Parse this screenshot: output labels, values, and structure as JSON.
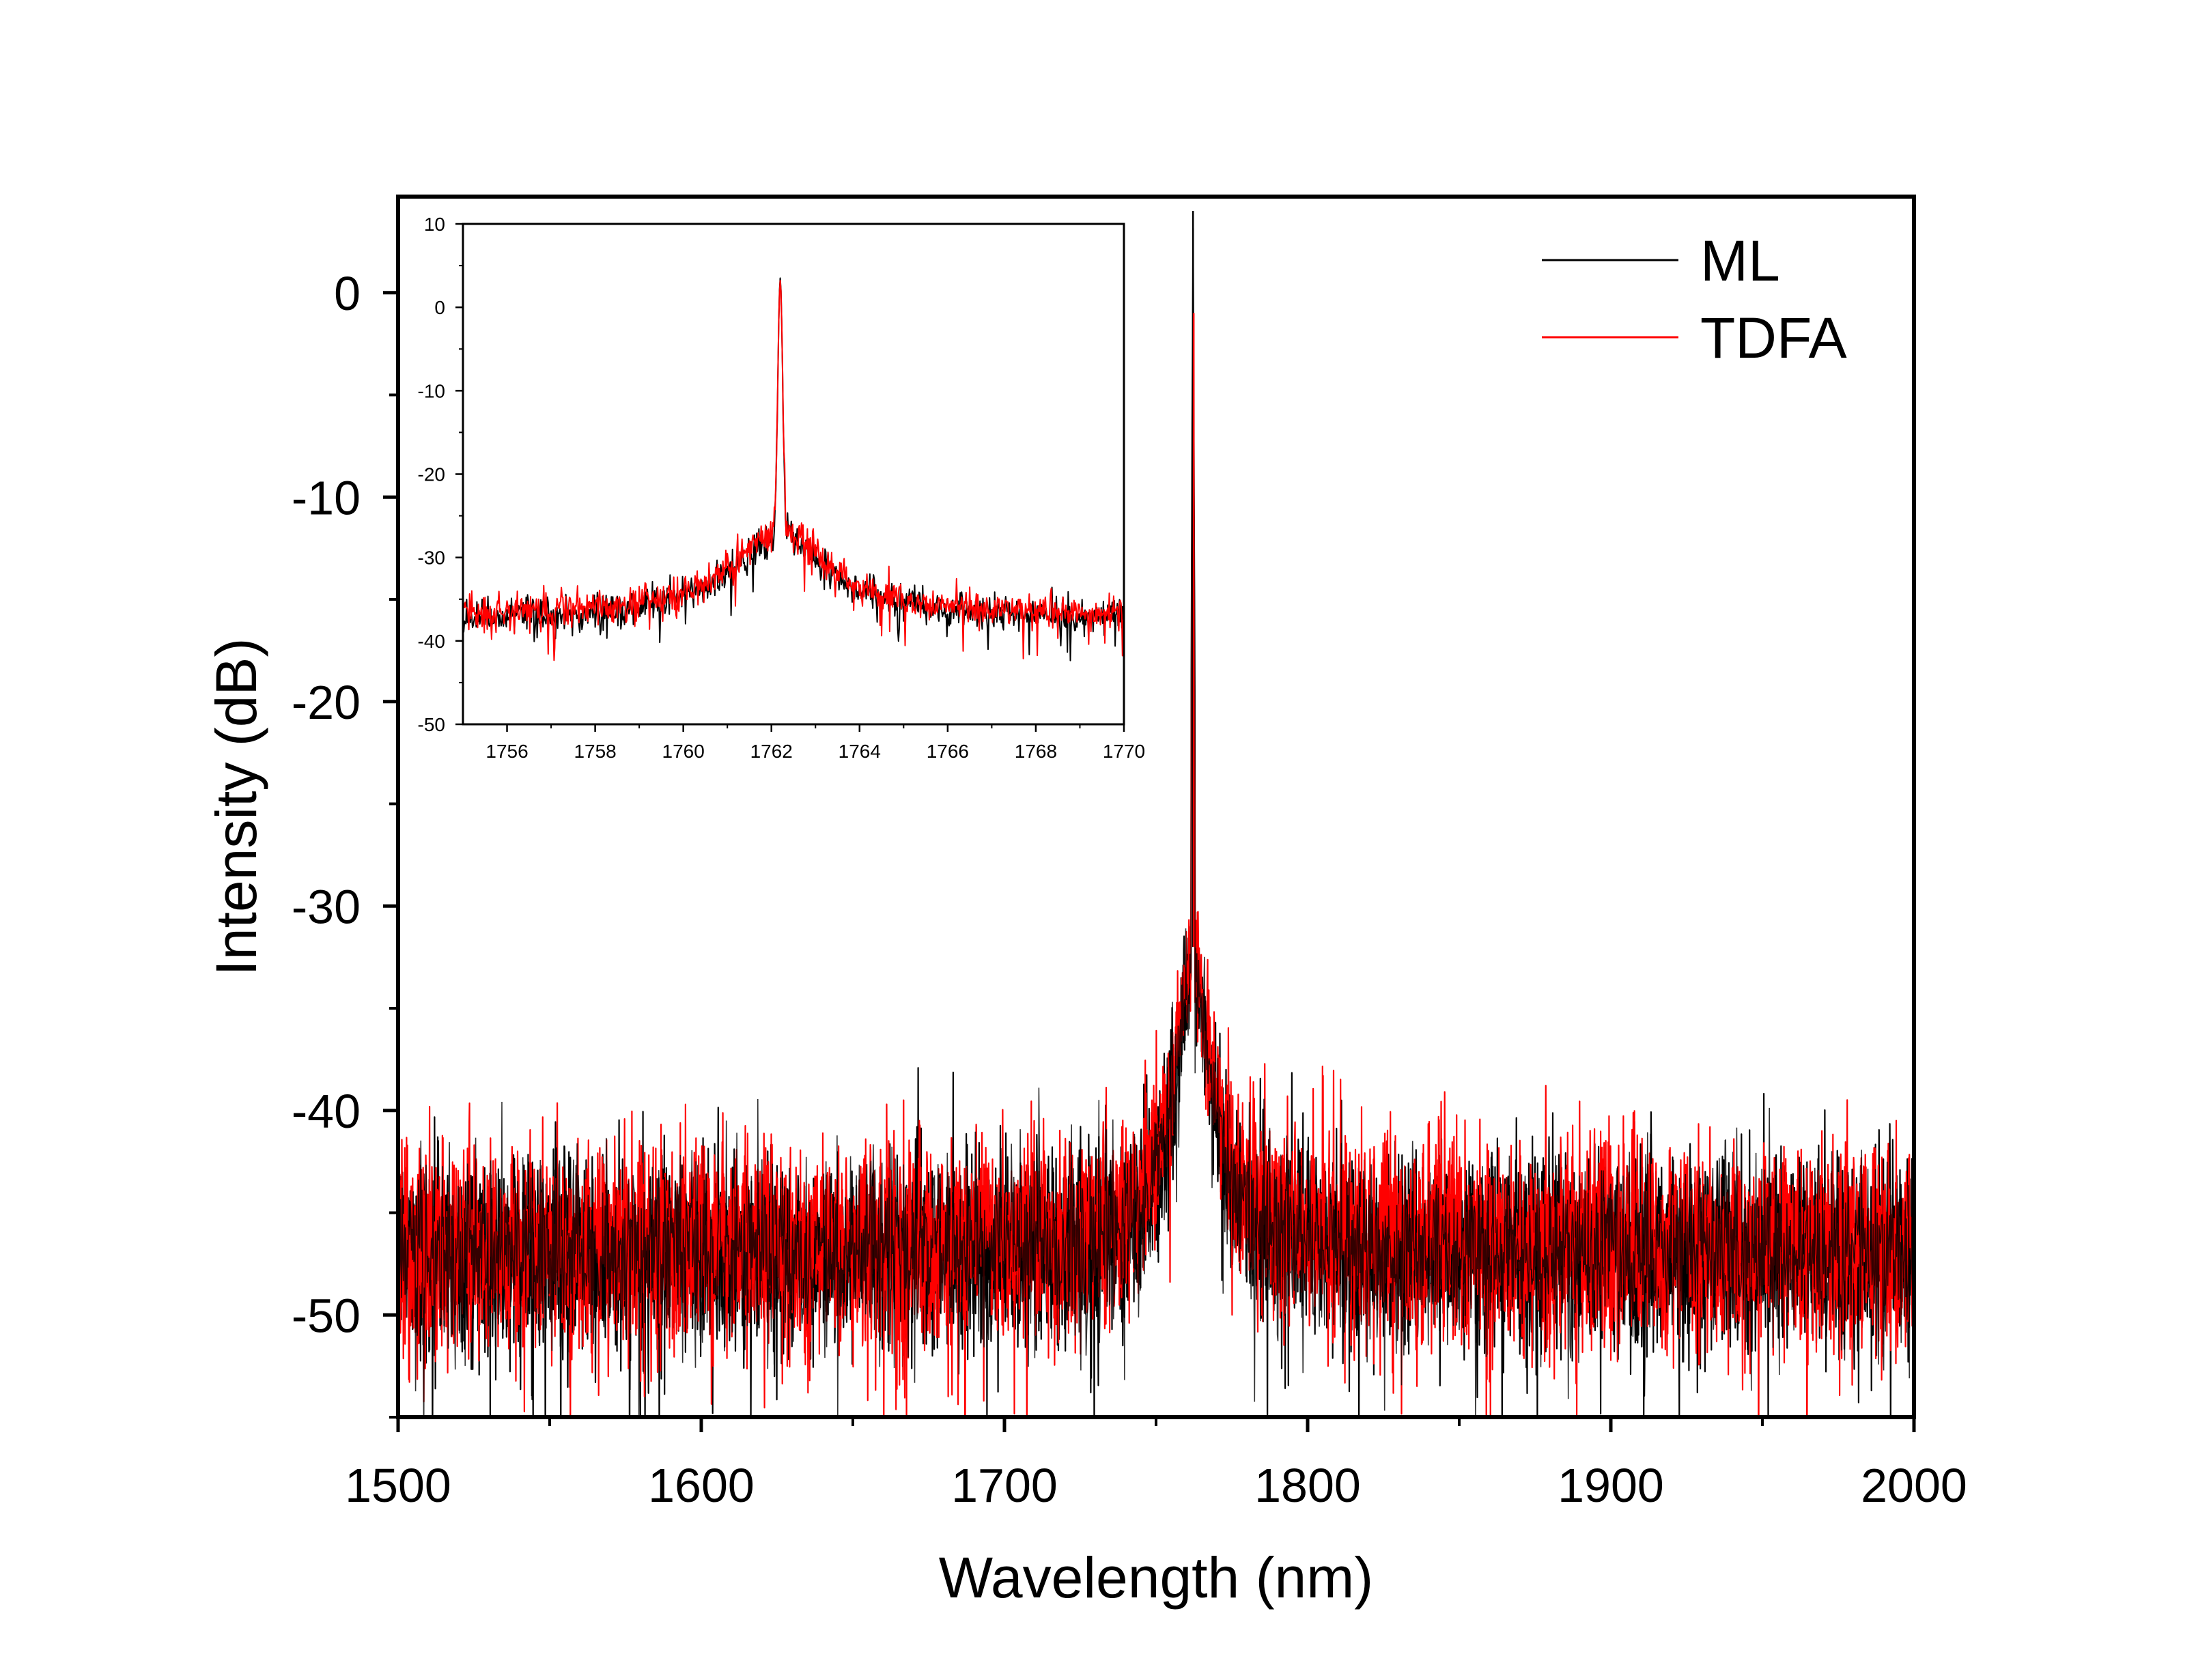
{
  "chart_data": [
    {
      "id": "main",
      "type": "line",
      "title": "",
      "xlabel": "Wavelength (nm)",
      "ylabel": "Intensity (dB)",
      "xlim": [
        1500,
        2000
      ],
      "ylim": [
        -55,
        4.7
      ],
      "xticks": [
        1500,
        1600,
        1700,
        1800,
        1900,
        2000
      ],
      "xtick_labels": [
        "1500",
        "1600",
        "1700",
        "1800",
        "1900",
        "2000"
      ],
      "yticks": [
        0,
        -10,
        -20,
        -30,
        -40,
        -50
      ],
      "ytick_labels": [
        "0",
        "-10",
        "-20",
        "-30",
        "-40",
        "-50"
      ],
      "grid": false,
      "legend": {
        "position": "top-right",
        "entries": [
          "ML",
          "TDFA"
        ]
      },
      "series": [
        {
          "name": "ML",
          "color": "#000000",
          "description": "noise floor around -47 dB with ~±4 dB noise, Lorentzian pedestal rising to about -33 dB near the peak, sharp lasing peak reaching 4 dB",
          "peak": {
            "x": 1762.2,
            "y": 4
          },
          "floor_level": -47,
          "floor_noise_std": 2.3,
          "pedestal_top": -33
        },
        {
          "name": "TDFA",
          "color": "#ff0000",
          "description": "nearly identical spectrum, slightly wider pedestal; peak about -1 dB",
          "peak": {
            "x": 1762.2,
            "y": -1
          },
          "floor_level": -46.6,
          "floor_noise_std": 2.5,
          "pedestal_top": -32.5
        }
      ]
    },
    {
      "id": "inset",
      "type": "line",
      "title": "",
      "xlabel": "",
      "ylabel": "",
      "xlim": [
        1755,
        1770
      ],
      "ylim": [
        -50,
        10
      ],
      "xticks": [
        1756,
        1758,
        1760,
        1762,
        1764,
        1766,
        1768,
        1770
      ],
      "xtick_labels": [
        "1756",
        "1758",
        "1760",
        "1762",
        "1764",
        "1766",
        "1768",
        "1770"
      ],
      "yticks": [
        10,
        0,
        -10,
        -20,
        -30,
        -40,
        -50
      ],
      "ytick_labels": [
        "10",
        "0",
        "-10",
        "-20",
        "-30",
        "-40",
        "-50"
      ],
      "grid": false,
      "series": [
        {
          "name": "ML",
          "color": "#000000",
          "peak": {
            "x": 1762.2,
            "y": 3.5
          },
          "floor_level": -37.5,
          "shoulder_level": -27.5
        },
        {
          "name": "TDFA",
          "color": "#ff0000",
          "peak": {
            "x": 1762.2,
            "y": 3.2
          },
          "floor_level": -37,
          "shoulder_level": -27
        }
      ]
    }
  ]
}
